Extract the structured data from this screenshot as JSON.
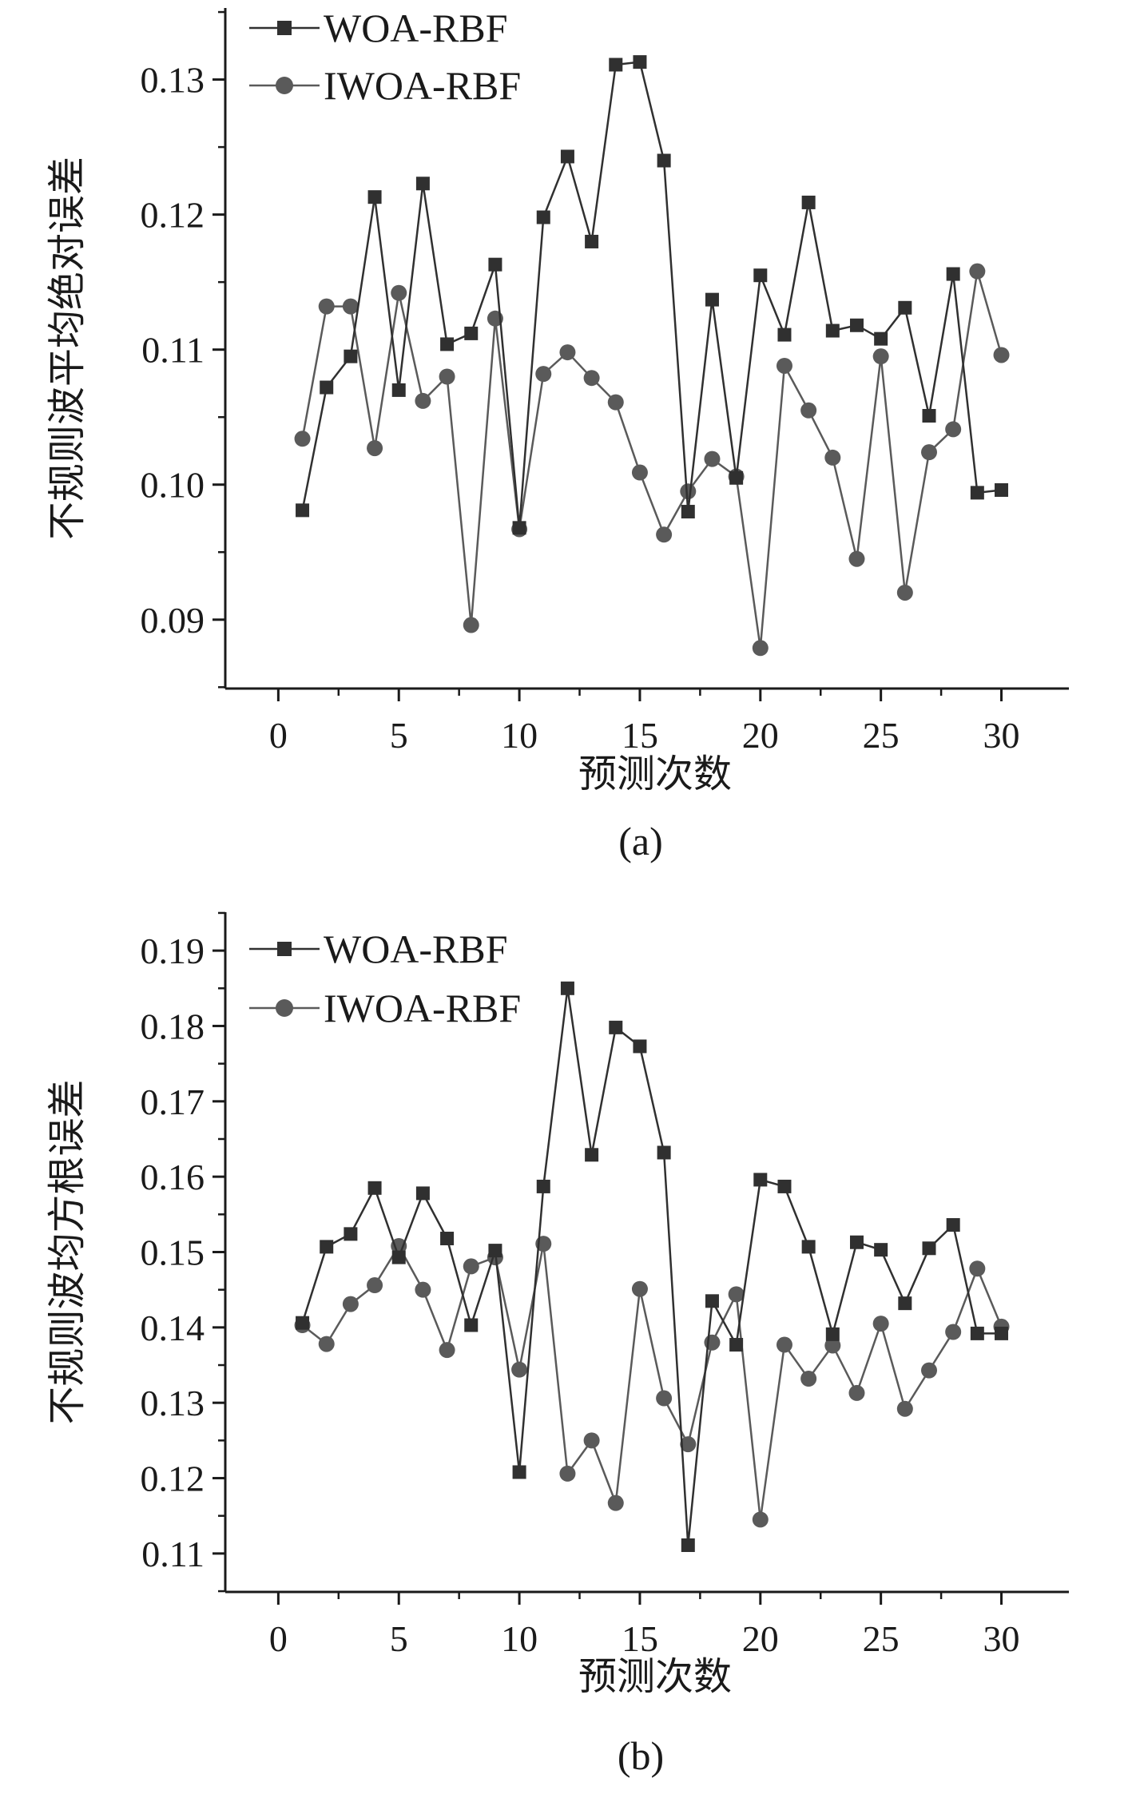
{
  "chart_data": [
    {
      "type": "line",
      "caption": "(a)",
      "xlabel": "预测次数",
      "ylabel": "不规则波平均绝对误差",
      "xlim": [
        -2.2,
        32.8
      ],
      "ylim": [
        0.0849,
        0.1353
      ],
      "xticks": [
        0,
        5,
        10,
        15,
        20,
        25,
        30
      ],
      "yticks": [
        0.09,
        0.1,
        0.11,
        0.12,
        0.13
      ],
      "ytick_labels": [
        "0.09",
        "0.10",
        "0.11",
        "0.12",
        "0.13"
      ],
      "legend_position": "top-left",
      "x": [
        1,
        2,
        3,
        4,
        5,
        6,
        7,
        8,
        9,
        10,
        11,
        12,
        13,
        14,
        15,
        16,
        17,
        18,
        19,
        20,
        21,
        22,
        23,
        24,
        25,
        26,
        27,
        28,
        29,
        30
      ],
      "series": [
        {
          "name": "WOA-RBF",
          "marker": "square",
          "color": "#303030",
          "values": [
            0.0981,
            0.1072,
            0.1095,
            0.1213,
            0.107,
            0.1223,
            0.1104,
            0.1112,
            0.1163,
            0.0968,
            0.1198,
            0.1243,
            0.118,
            0.1311,
            0.1313,
            0.124,
            0.098,
            0.1137,
            0.1005,
            0.1155,
            0.1111,
            0.1209,
            0.1114,
            0.1118,
            0.1108,
            0.1131,
            0.1051,
            0.1156,
            0.0994,
            0.0996
          ]
        },
        {
          "name": "IWOA-RBF",
          "marker": "circle",
          "color": "#5a5a5a",
          "values": [
            0.1034,
            0.1132,
            0.1132,
            0.1027,
            0.1142,
            0.1062,
            0.108,
            0.0896,
            0.1123,
            0.0967,
            0.1082,
            0.1098,
            0.1079,
            0.1061,
            0.1009,
            0.0963,
            0.0995,
            0.1019,
            0.1006,
            0.0879,
            0.1088,
            0.1055,
            0.102,
            0.0945,
            0.1095,
            0.092,
            0.1024,
            0.1041,
            0.1158,
            0.1096
          ]
        }
      ]
    },
    {
      "type": "line",
      "caption": "(b)",
      "xlabel": "预测次数",
      "ylabel": "不规则波均方根误差",
      "xlim": [
        -2.2,
        32.8
      ],
      "ylim": [
        0.1049,
        0.1951
      ],
      "xticks": [
        0,
        5,
        10,
        15,
        20,
        25,
        30
      ],
      "yticks": [
        0.11,
        0.12,
        0.13,
        0.14,
        0.15,
        0.16,
        0.17,
        0.18,
        0.19
      ],
      "ytick_labels": [
        "0.11",
        "0.12",
        "0.13",
        "0.14",
        "0.15",
        "0.16",
        "0.17",
        "0.18",
        "0.19"
      ],
      "legend_position": "top-left",
      "x": [
        1,
        2,
        3,
        4,
        5,
        6,
        7,
        8,
        9,
        10,
        11,
        12,
        13,
        14,
        15,
        16,
        17,
        18,
        19,
        20,
        21,
        22,
        23,
        24,
        25,
        26,
        27,
        28,
        29,
        30
      ],
      "series": [
        {
          "name": "WOA-RBF",
          "marker": "square",
          "color": "#303030",
          "values": [
            0.1406,
            0.1507,
            0.1524,
            0.1585,
            0.1493,
            0.1578,
            0.1518,
            0.1403,
            0.1502,
            0.1208,
            0.1587,
            0.185,
            0.1629,
            0.1798,
            0.1773,
            0.1632,
            0.1111,
            0.1435,
            0.1377,
            0.1596,
            0.1587,
            0.1507,
            0.1391,
            0.1513,
            0.1503,
            0.1432,
            0.1505,
            0.1536,
            0.1392,
            0.1392
          ]
        },
        {
          "name": "IWOA-RBF",
          "marker": "circle",
          "color": "#5a5a5a",
          "values": [
            0.1403,
            0.1378,
            0.1431,
            0.1456,
            0.1508,
            0.145,
            0.137,
            0.1481,
            0.1493,
            0.1344,
            0.1511,
            0.1206,
            0.125,
            0.1167,
            0.1451,
            0.1306,
            0.1245,
            0.138,
            0.1444,
            0.1145,
            0.1377,
            0.1332,
            0.1376,
            0.1313,
            0.1405,
            0.1292,
            0.1343,
            0.1394,
            0.1478,
            0.1401
          ]
        }
      ]
    }
  ]
}
